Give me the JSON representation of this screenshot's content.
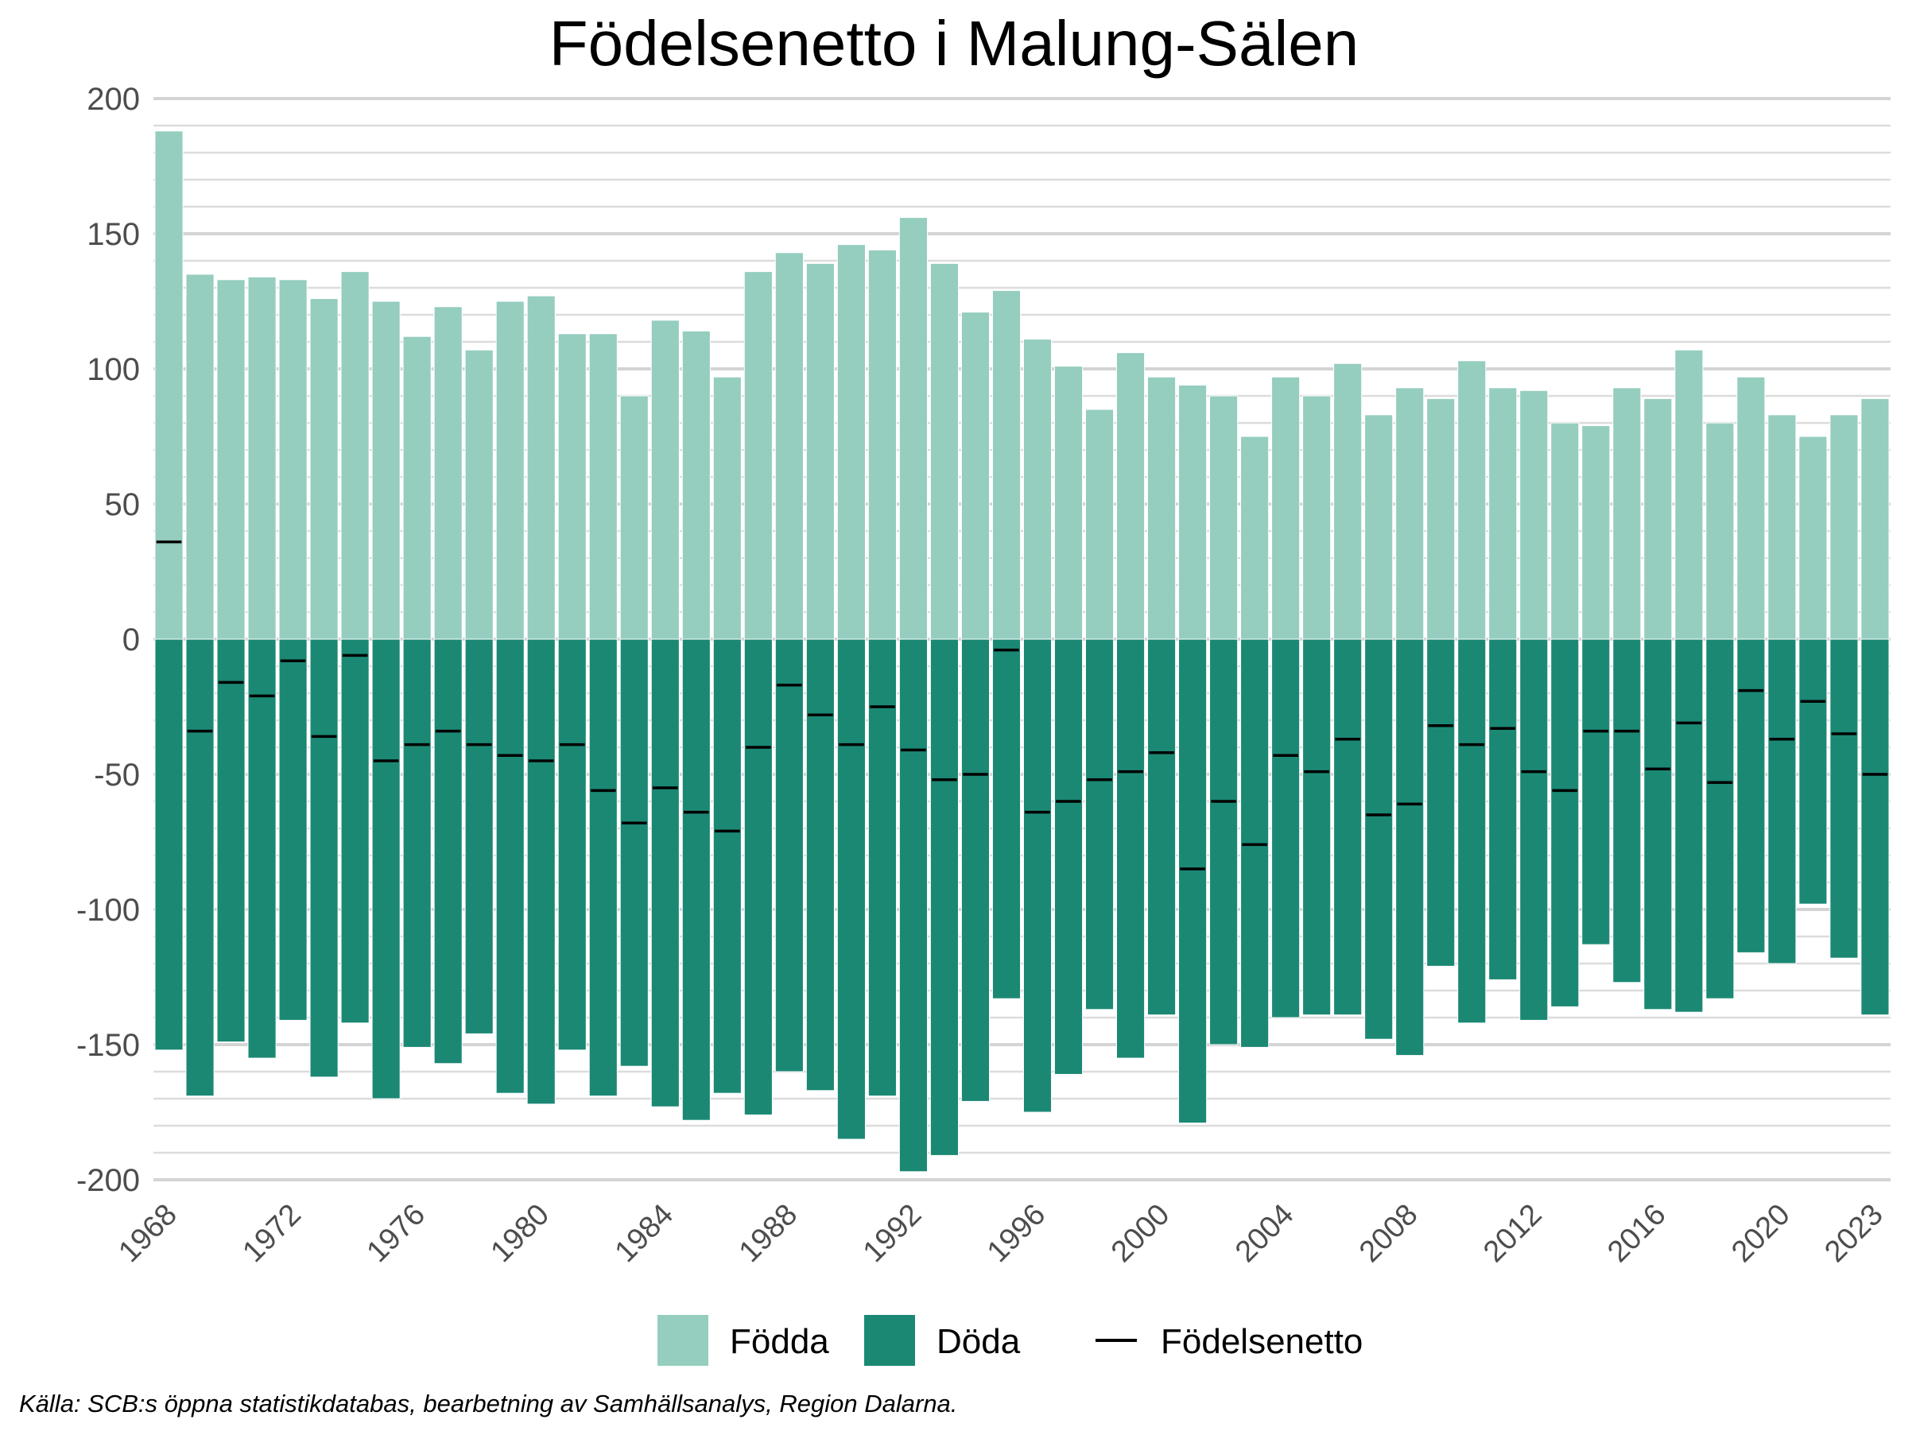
{
  "colors": {
    "fodda": "#95cdbf",
    "doda": "#1b8874",
    "netto": "#000000",
    "grid_major": "#d4d4d4",
    "grid_minor": "#dcdcdc"
  },
  "chart_data": {
    "type": "bar",
    "title": "Födelsenetto i Malung-Sälen",
    "xlabel": "",
    "ylabel": "",
    "ylim": [
      -200,
      200
    ],
    "yticks": [
      200,
      150,
      100,
      50,
      0,
      -50,
      -100,
      -150,
      -200
    ],
    "ytick_labels": [
      "200",
      "150",
      "100",
      "50",
      "0",
      "-50",
      "-100",
      "-150",
      "-200"
    ],
    "grid": true,
    "legend_position": "bottom",
    "x": [
      1968,
      1969,
      1970,
      1971,
      1972,
      1973,
      1974,
      1975,
      1976,
      1977,
      1978,
      1979,
      1980,
      1981,
      1982,
      1983,
      1984,
      1985,
      1986,
      1987,
      1988,
      1989,
      1990,
      1991,
      1992,
      1993,
      1994,
      1995,
      1996,
      1997,
      1998,
      1999,
      2000,
      2001,
      2002,
      2003,
      2004,
      2005,
      2006,
      2007,
      2008,
      2009,
      2010,
      2011,
      2012,
      2013,
      2014,
      2015,
      2016,
      2017,
      2018,
      2019,
      2020,
      2021,
      2022,
      2023
    ],
    "xtick_labels": [
      "1968",
      "1972",
      "1976",
      "1980",
      "1984",
      "1988",
      "1992",
      "1996",
      "2000",
      "2004",
      "2008",
      "2012",
      "2016",
      "2020",
      "2023"
    ],
    "series": [
      {
        "name": "Födda",
        "kind": "bar",
        "values": [
          188,
          135,
          133,
          134,
          133,
          126,
          136,
          125,
          112,
          123,
          107,
          125,
          127,
          113,
          113,
          90,
          118,
          114,
          97,
          136,
          143,
          139,
          146,
          144,
          156,
          139,
          121,
          129,
          111,
          101,
          85,
          106,
          97,
          94,
          90,
          75,
          97,
          90,
          102,
          83,
          93,
          89,
          103,
          93,
          92,
          80,
          79,
          93,
          89,
          107,
          80,
          97,
          83,
          75,
          83,
          89
        ]
      },
      {
        "name": "Döda",
        "kind": "bar",
        "values": [
          -152,
          -169,
          -149,
          -155,
          -141,
          -162,
          -142,
          -170,
          -151,
          -157,
          -146,
          -168,
          -172,
          -152,
          -169,
          -158,
          -173,
          -178,
          -168,
          -176,
          -160,
          -167,
          -185,
          -169,
          -197,
          -191,
          -171,
          -133,
          -175,
          -161,
          -137,
          -155,
          -139,
          -179,
          -150,
          -151,
          -140,
          -139,
          -139,
          -148,
          -154,
          -121,
          -142,
          -126,
          -141,
          -136,
          -113,
          -127,
          -137,
          -138,
          -133,
          -116,
          -120,
          -98,
          -118,
          -139
        ]
      },
      {
        "name": "Födelsenetto",
        "kind": "line",
        "values": [
          36,
          -34,
          -16,
          -21,
          -8,
          -36,
          -6,
          -45,
          -39,
          -34,
          -39,
          -43,
          -45,
          -39,
          -56,
          -68,
          -55,
          -64,
          -71,
          -40,
          -17,
          -28,
          -39,
          -25,
          -41,
          -52,
          -50,
          -4,
          -64,
          -60,
          -52,
          -49,
          -42,
          -85,
          -60,
          -76,
          -43,
          -49,
          -37,
          -65,
          -61,
          -32,
          -39,
          -33,
          -49,
          -56,
          -34,
          -34,
          -48,
          -31,
          -53,
          -19,
          -37,
          -23,
          -35,
          -50
        ]
      }
    ]
  },
  "legend": {
    "items": [
      {
        "label": "Födda"
      },
      {
        "label": "Döda"
      },
      {
        "label": "Födelsenetto"
      }
    ]
  },
  "source": "Källa: SCB:s öppna statistikdatabas, bearbetning av Samhällsanalys, Region Dalarna."
}
